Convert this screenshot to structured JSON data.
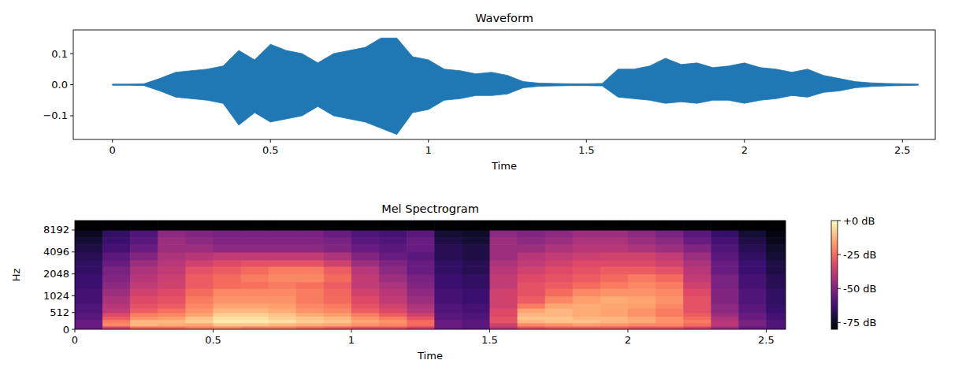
{
  "chart_data": [
    {
      "type": "waveform",
      "title": "Waveform",
      "xlabel": "Time",
      "color": "#1f77b4",
      "xlim": [
        -0.124,
        2.604
      ],
      "ylim": [
        -0.176,
        0.176
      ],
      "xticks": [
        0,
        0.5,
        1,
        1.5,
        2,
        2.5
      ],
      "yticks": [
        {
          "value": -0.1,
          "label": "−0.1"
        },
        {
          "value": 0,
          "label": "0.0"
        },
        0.1
      ],
      "x": [
        0,
        0.05,
        0.1,
        0.15,
        0.2,
        0.25,
        0.3,
        0.35,
        0.4,
        0.45,
        0.5,
        0.55,
        0.6,
        0.65,
        0.7,
        0.75,
        0.8,
        0.85,
        0.9,
        0.95,
        1.0,
        1.05,
        1.1,
        1.15,
        1.2,
        1.25,
        1.3,
        1.35,
        1.4,
        1.45,
        1.5,
        1.55,
        1.6,
        1.65,
        1.7,
        1.75,
        1.8,
        1.85,
        1.9,
        1.95,
        2.0,
        2.05,
        2.1,
        2.15,
        2.2,
        2.25,
        2.3,
        2.35,
        2.4,
        2.45,
        2.5,
        2.55
      ],
      "upper": [
        0.002,
        0.002,
        0.003,
        0.02,
        0.04,
        0.045,
        0.05,
        0.06,
        0.11,
        0.08,
        0.13,
        0.11,
        0.1,
        0.07,
        0.1,
        0.11,
        0.12,
        0.15,
        0.15,
        0.09,
        0.08,
        0.05,
        0.045,
        0.035,
        0.04,
        0.03,
        0.01,
        0.005,
        0.004,
        0.003,
        0.003,
        0.004,
        0.05,
        0.05,
        0.06,
        0.085,
        0.065,
        0.07,
        0.055,
        0.06,
        0.07,
        0.055,
        0.05,
        0.04,
        0.05,
        0.03,
        0.02,
        0.01,
        0.006,
        0.004,
        0.003,
        0.002
      ],
      "lower": [
        -0.002,
        -0.002,
        -0.003,
        -0.02,
        -0.04,
        -0.045,
        -0.05,
        -0.06,
        -0.13,
        -0.09,
        -0.12,
        -0.11,
        -0.1,
        -0.07,
        -0.1,
        -0.11,
        -0.12,
        -0.14,
        -0.16,
        -0.09,
        -0.08,
        -0.05,
        -0.045,
        -0.035,
        -0.035,
        -0.03,
        -0.01,
        -0.005,
        -0.004,
        -0.003,
        -0.003,
        -0.004,
        -0.04,
        -0.045,
        -0.05,
        -0.06,
        -0.055,
        -0.06,
        -0.05,
        -0.05,
        -0.06,
        -0.05,
        -0.045,
        -0.035,
        -0.04,
        -0.025,
        -0.02,
        -0.01,
        -0.006,
        -0.004,
        -0.003,
        -0.002
      ]
    },
    {
      "type": "mel_spectrogram",
      "title": "Mel Spectrogram",
      "xlabel": "Time",
      "ylabel": "Hz",
      "xlim": [
        0,
        2.57
      ],
      "ylim": [
        0,
        11025
      ],
      "xticks": [
        0,
        0.5,
        1,
        1.5,
        2,
        2.5
      ],
      "yticks": [
        0,
        512,
        1024,
        2048,
        4096,
        8192
      ],
      "x_edges": [
        0,
        0.1,
        0.2,
        0.3,
        0.4,
        0.5,
        0.6,
        0.7,
        0.8,
        0.9,
        1.0,
        1.1,
        1.2,
        1.3,
        1.4,
        1.5,
        1.6,
        1.7,
        1.8,
        1.9,
        2.0,
        2.1,
        2.2,
        2.3,
        2.4,
        2.5,
        2.57
      ],
      "y_edges": [
        0,
        100,
        200,
        300,
        400,
        512,
        650,
        800,
        1024,
        1300,
        1600,
        2048,
        2600,
        3200,
        4096,
        5200,
        6500,
        8192,
        11025
      ],
      "cells": [
        [
          -55,
          -35,
          -25,
          -25,
          -22,
          -20,
          -22,
          -22,
          -25,
          -28,
          -30,
          -30,
          -35,
          -55,
          -58,
          -40,
          -30,
          -28,
          -28,
          -28,
          -30,
          -30,
          -35,
          -45,
          -55,
          -60
        ],
        [
          -55,
          -20,
          -12,
          -14,
          -15,
          -10,
          -10,
          -12,
          -14,
          -15,
          -18,
          -20,
          -25,
          -55,
          -58,
          -35,
          -20,
          -18,
          -16,
          -18,
          -20,
          -20,
          -25,
          -40,
          -52,
          -60
        ],
        [
          -55,
          -22,
          -12,
          -12,
          -8,
          -3,
          -3,
          -5,
          -8,
          -10,
          -15,
          -18,
          -25,
          -55,
          -58,
          -30,
          -12,
          -10,
          -10,
          -12,
          -14,
          -18,
          -22,
          -40,
          -52,
          -60
        ],
        [
          -58,
          -28,
          -18,
          -16,
          -10,
          -5,
          -5,
          -8,
          -10,
          -12,
          -18,
          -22,
          -30,
          -58,
          -60,
          -30,
          -10,
          -10,
          -12,
          -12,
          -15,
          -18,
          -25,
          -42,
          -55,
          -62
        ],
        [
          -58,
          -32,
          -22,
          -20,
          -15,
          -8,
          -8,
          -10,
          -14,
          -16,
          -22,
          -28,
          -35,
          -58,
          -60,
          -32,
          -12,
          -12,
          -14,
          -15,
          -18,
          -22,
          -28,
          -45,
          -55,
          -62
        ],
        [
          -60,
          -38,
          -28,
          -24,
          -18,
          -12,
          -12,
          -14,
          -18,
          -20,
          -28,
          -32,
          -40,
          -60,
          -62,
          -32,
          -15,
          -12,
          -14,
          -15,
          -18,
          -22,
          -30,
          -48,
          -58,
          -64
        ],
        [
          -60,
          -40,
          -30,
          -28,
          -20,
          -15,
          -15,
          -16,
          -20,
          -22,
          -30,
          -35,
          -42,
          -60,
          -62,
          -35,
          -22,
          -15,
          -14,
          -15,
          -16,
          -20,
          -30,
          -48,
          -58,
          -65
        ],
        [
          -62,
          -42,
          -32,
          -30,
          -22,
          -18,
          -18,
          -18,
          -22,
          -25,
          -32,
          -38,
          -45,
          -62,
          -64,
          -35,
          -28,
          -20,
          -16,
          -14,
          -15,
          -18,
          -30,
          -50,
          -60,
          -66
        ],
        [
          -62,
          -45,
          -35,
          -32,
          -25,
          -20,
          -20,
          -20,
          -22,
          -26,
          -35,
          -40,
          -48,
          -62,
          -64,
          -35,
          -30,
          -25,
          -20,
          -18,
          -18,
          -20,
          -32,
          -50,
          -60,
          -66
        ],
        [
          -64,
          -48,
          -38,
          -35,
          -28,
          -25,
          -24,
          -22,
          -24,
          -28,
          -38,
          -42,
          -50,
          -64,
          -66,
          -38,
          -30,
          -28,
          -25,
          -22,
          -20,
          -22,
          -35,
          -52,
          -62,
          -68
        ],
        [
          -64,
          -50,
          -40,
          -36,
          -28,
          -25,
          -22,
          -20,
          -20,
          -25,
          -38,
          -45,
          -52,
          -64,
          -66,
          -38,
          -32,
          -30,
          -28,
          -25,
          -22,
          -25,
          -38,
          -52,
          -62,
          -68
        ],
        [
          -66,
          -52,
          -42,
          -38,
          -30,
          -28,
          -25,
          -22,
          -22,
          -28,
          -40,
          -48,
          -55,
          -66,
          -68,
          -40,
          -35,
          -32,
          -30,
          -28,
          -28,
          -30,
          -40,
          -55,
          -64,
          -70
        ],
        [
          -66,
          -55,
          -45,
          -40,
          -35,
          -32,
          -30,
          -30,
          -30,
          -35,
          -45,
          -50,
          -55,
          -66,
          -68,
          -42,
          -38,
          -35,
          -32,
          -32,
          -32,
          -35,
          -42,
          -55,
          -64,
          -70
        ],
        [
          -68,
          -58,
          -50,
          -42,
          -40,
          -38,
          -38,
          -38,
          -38,
          -42,
          -50,
          -55,
          -58,
          -68,
          -70,
          -45,
          -40,
          -38,
          -36,
          -35,
          -35,
          -38,
          -45,
          -58,
          -66,
          -72
        ],
        [
          -70,
          -62,
          -55,
          -45,
          -45,
          -48,
          -48,
          -48,
          -48,
          -50,
          -55,
          -58,
          -55,
          -68,
          -70,
          -45,
          -45,
          -42,
          -40,
          -40,
          -42,
          -45,
          -50,
          -60,
          -68,
          -74
        ],
        [
          -72,
          -64,
          -58,
          -45,
          -48,
          -50,
          -50,
          -50,
          -50,
          -52,
          -58,
          -60,
          -55,
          -70,
          -72,
          -45,
          -48,
          -45,
          -42,
          -42,
          -45,
          -48,
          -55,
          -62,
          -70,
          -76
        ],
        [
          -75,
          -66,
          -60,
          -48,
          -50,
          -52,
          -52,
          -52,
          -52,
          -55,
          -60,
          -62,
          -58,
          -72,
          -74,
          -48,
          -50,
          -48,
          -45,
          -45,
          -48,
          -52,
          -58,
          -65,
          -72,
          -78
        ],
        [
          -80,
          -80,
          -80,
          -80,
          -80,
          -80,
          -80,
          -80,
          -80,
          -80,
          -80,
          -80,
          -80,
          -80,
          -80,
          -80,
          -80,
          -80,
          -80,
          -80,
          -80,
          -80,
          -80,
          -80,
          -80,
          -80
        ]
      ],
      "colorbar": {
        "range": [
          -80,
          0
        ],
        "ticks": [
          {
            "value": 0,
            "label": "+0 dB"
          },
          {
            "value": -25,
            "label": "-25 dB"
          },
          {
            "value": -50,
            "label": "-50 dB"
          },
          {
            "value": -75,
            "label": "-75 dB"
          }
        ]
      }
    }
  ]
}
